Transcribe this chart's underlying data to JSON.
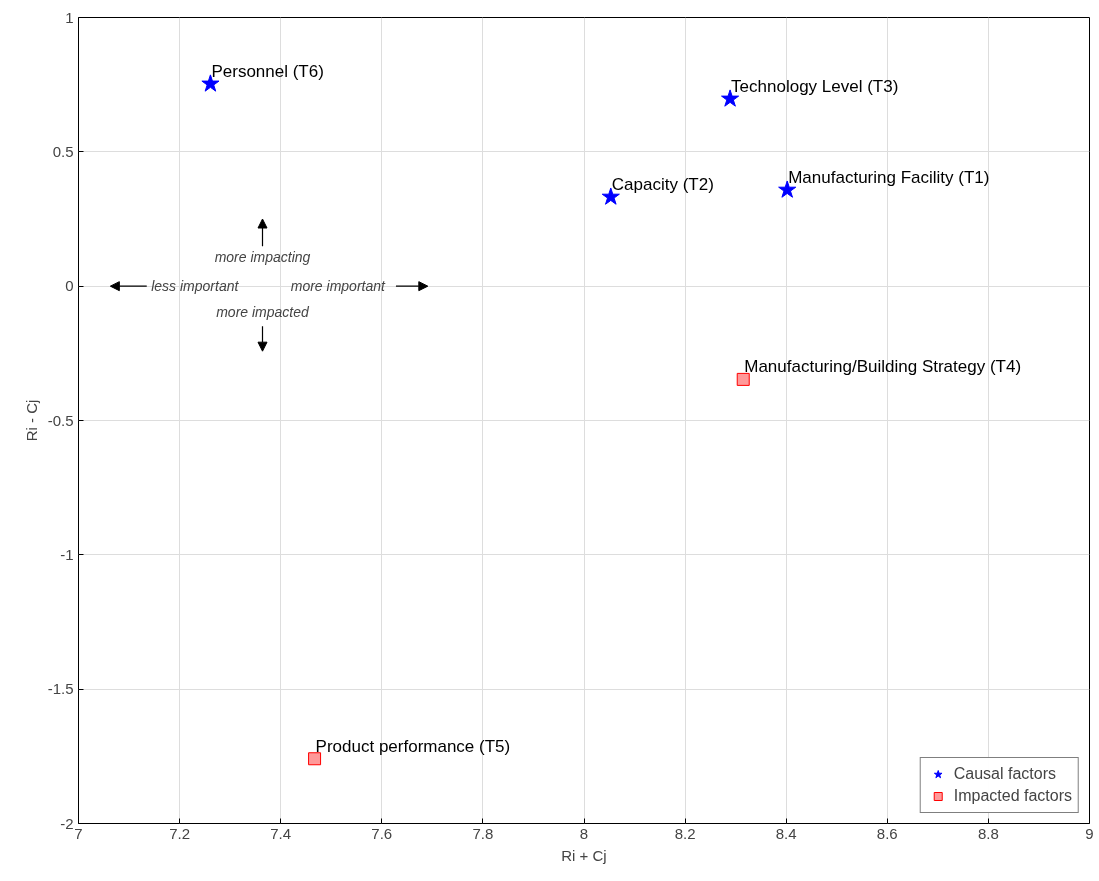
{
  "chart_data": {
    "type": "scatter",
    "xlabel": "Ri + Cj",
    "ylabel": "Ri - Cj",
    "xlim": [
      7,
      9
    ],
    "ylim": [
      -2,
      1
    ],
    "xticks": [
      7,
      7.2,
      7.4,
      7.6,
      7.8,
      8,
      8.2,
      8.4,
      8.6,
      8.8,
      9
    ],
    "yticks": [
      -2,
      -1.5,
      -1,
      -0.5,
      0,
      0.5,
      1
    ],
    "grid": true,
    "legend": "bottom right",
    "series": [
      {
        "name": "Causal factors",
        "color": "#0000ff",
        "marker": "star",
        "x": [
          8.402,
          8.053,
          8.289,
          7.261
        ],
        "values": [
          0.358,
          0.332,
          0.697,
          0.753
        ]
      },
      {
        "name": "Impacted factors",
        "color": "#ff9999",
        "marker": "square",
        "x": [
          8.315,
          7.467
        ],
        "values": [
          -0.347,
          -1.759
        ]
      }
    ],
    "annotations": [
      {
        "text": "Manufacturing Facility (T1)",
        "x": 8.402,
        "y": 0.358
      },
      {
        "text": "Capacity (T2)",
        "x": 8.053,
        "y": 0.332
      },
      {
        "text": "Technology Level (T3)",
        "x": 8.289,
        "y": 0.697
      },
      {
        "text": "Manufacturing/Building Strategy (T4)",
        "x": 8.315,
        "y": -0.347
      },
      {
        "text": "Product performance (T5)",
        "x": 7.467,
        "y": -1.759
      },
      {
        "text": "Personnel (T6)",
        "x": 7.261,
        "y": 0.753
      },
      "more impacting",
      "less important",
      "more important",
      "more impacted"
    ]
  }
}
